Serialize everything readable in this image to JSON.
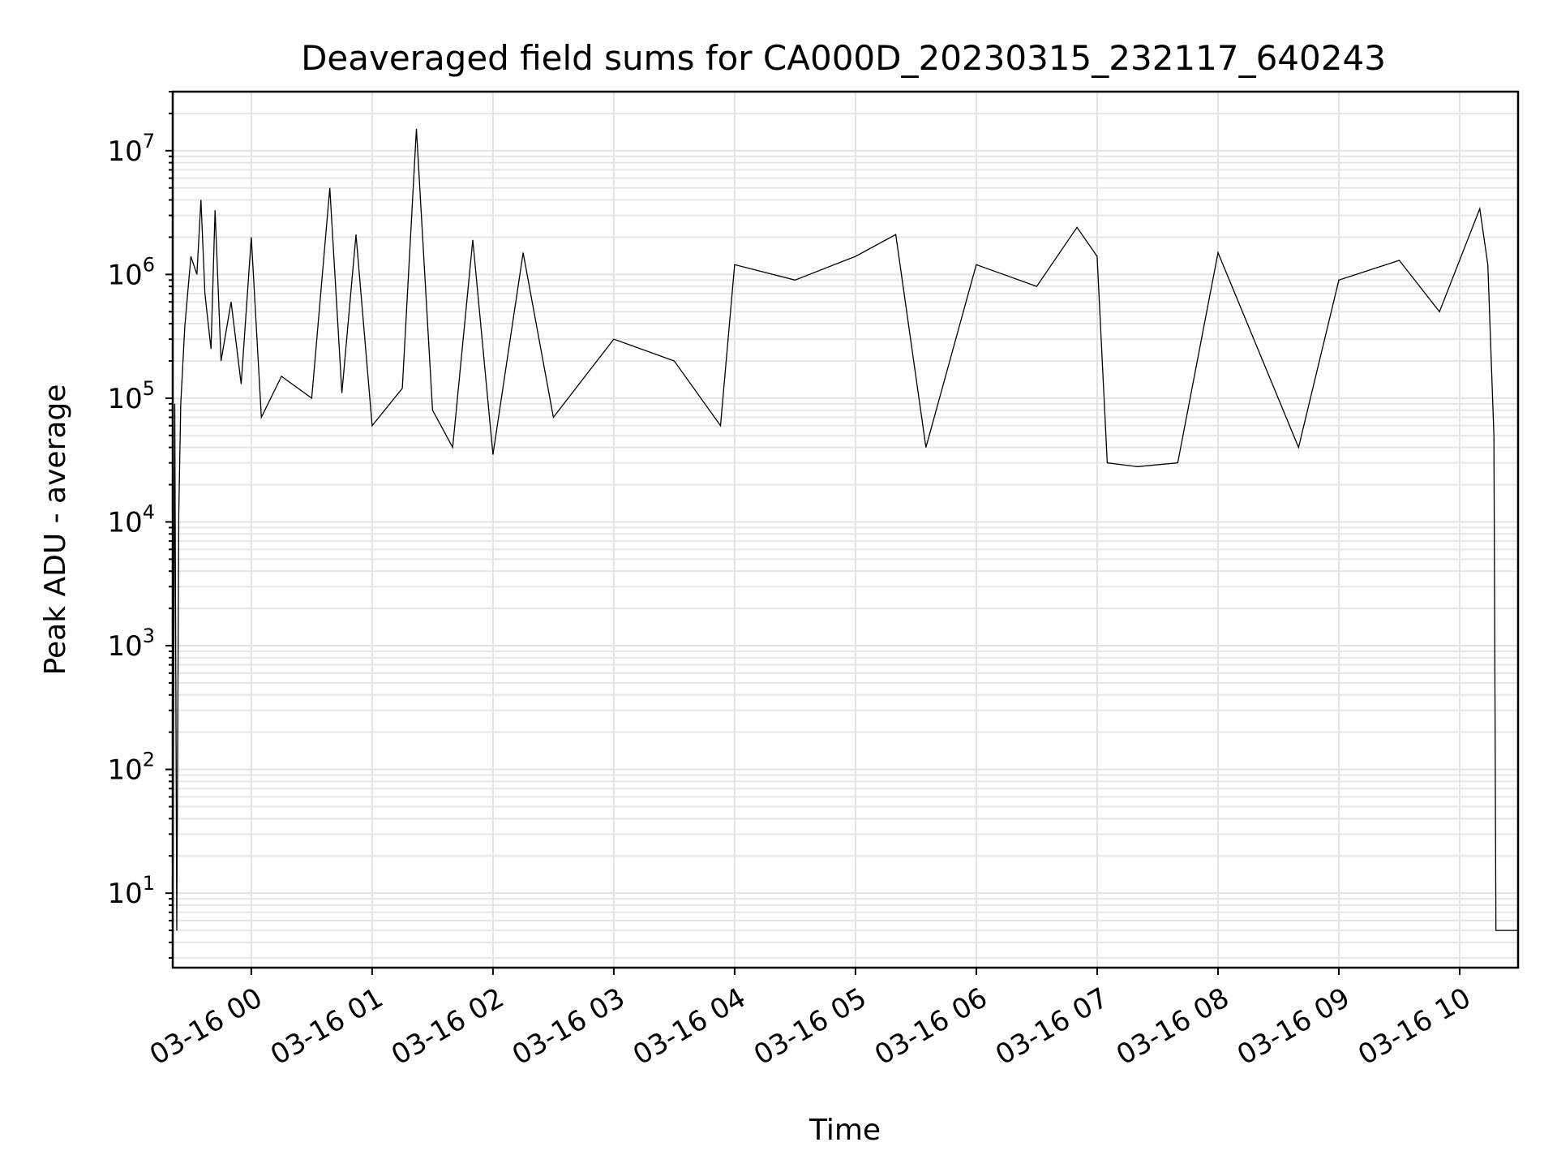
{
  "chart_data": {
    "type": "line",
    "title": "Deaveraged field sums for CA000D_20230315_232117_640243",
    "xlabel": "Time",
    "ylabel": "Peak ADU - average",
    "yscale": "log",
    "ylim": [
      2.5,
      30000000
    ],
    "xlim": [
      "2023-03-15 23:21",
      "2023-03-16 10:29"
    ],
    "grid": "on (major and minor)",
    "x_tick_labels": [
      "03-16 00",
      "03-16 01",
      "03-16 02",
      "03-16 03",
      "03-16 04",
      "03-16 05",
      "03-16 06",
      "03-16 07",
      "03-16 08",
      "03-16 09",
      "03-16 10"
    ],
    "x_tick_times": [
      "2023-03-16 00:00",
      "2023-03-16 01:00",
      "2023-03-16 02:00",
      "2023-03-16 03:00",
      "2023-03-16 04:00",
      "2023-03-16 05:00",
      "2023-03-16 06:00",
      "2023-03-16 07:00",
      "2023-03-16 08:00",
      "2023-03-16 09:00",
      "2023-03-16 10:00"
    ],
    "y_tick_labels": [
      {
        "base": "10",
        "exp": "1",
        "value": 10
      },
      {
        "base": "10",
        "exp": "2",
        "value": 100
      },
      {
        "base": "10",
        "exp": "3",
        "value": 1000
      },
      {
        "base": "10",
        "exp": "4",
        "value": 10000
      },
      {
        "base": "10",
        "exp": "5",
        "value": 100000
      },
      {
        "base": "10",
        "exp": "6",
        "value": 1000000
      },
      {
        "base": "10",
        "exp": "7",
        "value": 10000000
      }
    ],
    "series": [
      {
        "color": "#000000",
        "points": [
          [
            "2023-03-15 23:21",
            2.5
          ],
          [
            "2023-03-15 23:22",
            90000
          ],
          [
            "2023-03-15 23:23",
            5
          ],
          [
            "2023-03-15 23:24",
            12000
          ],
          [
            "2023-03-15 23:25",
            90000
          ],
          [
            "2023-03-15 23:27",
            380000
          ],
          [
            "2023-03-15 23:30",
            1400000
          ],
          [
            "2023-03-15 23:33",
            1000000
          ],
          [
            "2023-03-15 23:35",
            4000000
          ],
          [
            "2023-03-15 23:37",
            700000
          ],
          [
            "2023-03-15 23:40",
            250000
          ],
          [
            "2023-03-15 23:42",
            3300000
          ],
          [
            "2023-03-15 23:45",
            200000
          ],
          [
            "2023-03-15 23:50",
            600000
          ],
          [
            "2023-03-15 23:55",
            130000
          ],
          [
            "2023-03-16 00:00",
            2000000
          ],
          [
            "2023-03-16 00:05",
            70000
          ],
          [
            "2023-03-16 00:15",
            150000
          ],
          [
            "2023-03-16 00:30",
            100000
          ],
          [
            "2023-03-16 00:39",
            5000000
          ],
          [
            "2023-03-16 00:45",
            110000
          ],
          [
            "2023-03-16 00:52",
            2100000
          ],
          [
            "2023-03-16 01:00",
            60000
          ],
          [
            "2023-03-16 01:15",
            120000
          ],
          [
            "2023-03-16 01:22",
            15000000
          ],
          [
            "2023-03-16 01:30",
            80000
          ],
          [
            "2023-03-16 01:40",
            40000
          ],
          [
            "2023-03-16 01:50",
            1900000
          ],
          [
            "2023-03-16 02:00",
            35000
          ],
          [
            "2023-03-16 02:15",
            1500000
          ],
          [
            "2023-03-16 02:30",
            70000
          ],
          [
            "2023-03-16 03:00",
            300000
          ],
          [
            "2023-03-16 03:30",
            200000
          ],
          [
            "2023-03-16 03:53",
            60000
          ],
          [
            "2023-03-16 04:00",
            1200000
          ],
          [
            "2023-03-16 04:30",
            900000
          ],
          [
            "2023-03-16 05:00",
            1400000
          ],
          [
            "2023-03-16 05:20",
            2100000
          ],
          [
            "2023-03-16 05:35",
            40000
          ],
          [
            "2023-03-16 06:00",
            1200000
          ],
          [
            "2023-03-16 06:30",
            800000
          ],
          [
            "2023-03-16 06:50",
            2400000
          ],
          [
            "2023-03-16 07:00",
            1400000
          ],
          [
            "2023-03-16 07:05",
            30000
          ],
          [
            "2023-03-16 07:20",
            28000
          ],
          [
            "2023-03-16 07:40",
            30000
          ],
          [
            "2023-03-16 08:00",
            1500000
          ],
          [
            "2023-03-16 08:40",
            40000
          ],
          [
            "2023-03-16 09:00",
            900000
          ],
          [
            "2023-03-16 09:30",
            1300000
          ],
          [
            "2023-03-16 09:50",
            500000
          ],
          [
            "2023-03-16 10:10",
            3400000
          ],
          [
            "2023-03-16 10:14",
            1200000
          ],
          [
            "2023-03-16 10:17",
            50000
          ],
          [
            "2023-03-16 10:18",
            5
          ],
          [
            "2023-03-16 10:29",
            5
          ]
        ]
      }
    ]
  }
}
